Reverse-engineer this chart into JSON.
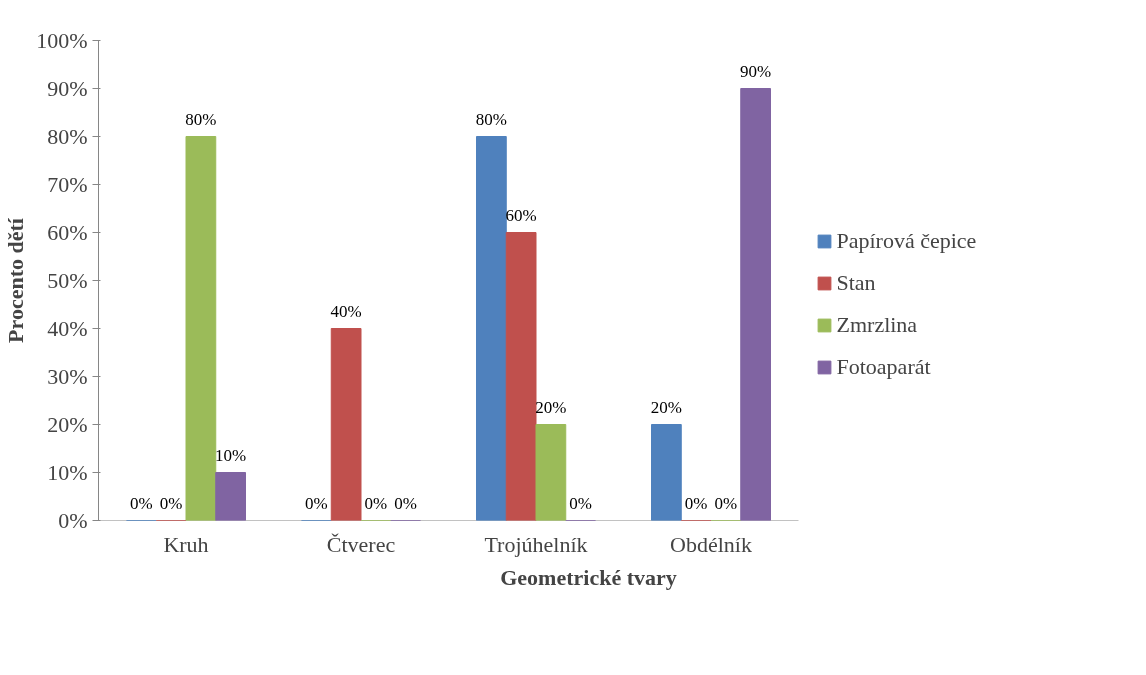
{
  "chart_data": {
    "type": "bar",
    "xlabel": "Geometrické tvary",
    "ylabel": "Procento dětí",
    "categories": [
      "Kruh",
      "Čtverec",
      "Trojúhelník",
      "Obdélník"
    ],
    "series": [
      {
        "name": "Papírová čepice",
        "color": "#4f81bd",
        "values": [
          0,
          0,
          80,
          20
        ],
        "value_labels": [
          "0%",
          "0%",
          "80%",
          "20%"
        ]
      },
      {
        "name": "Stan",
        "color": "#c0504d",
        "values": [
          0,
          40,
          60,
          0
        ],
        "value_labels": [
          "0%",
          "40%",
          "60%",
          "0%"
        ]
      },
      {
        "name": "Zmrzlina",
        "color": "#9bbb59",
        "values": [
          80,
          0,
          20,
          0
        ],
        "value_labels": [
          "80%",
          "0%",
          "20%",
          "0%"
        ]
      },
      {
        "name": "Fotoaparát",
        "color": "#8064a2",
        "values": [
          10,
          0,
          0,
          90
        ],
        "value_labels": [
          "10%",
          "0%",
          "0%",
          "90%"
        ]
      }
    ],
    "ylim": [
      0,
      100
    ],
    "yticks": [
      {
        "value": 0,
        "label": "0%"
      },
      {
        "value": 10,
        "label": "10%"
      },
      {
        "value": 20,
        "label": "20%"
      },
      {
        "value": 30,
        "label": "30%"
      },
      {
        "value": 40,
        "label": "40%"
      },
      {
        "value": 50,
        "label": "50%"
      },
      {
        "value": 60,
        "label": "60%"
      },
      {
        "value": 70,
        "label": "70%"
      },
      {
        "value": 80,
        "label": "80%"
      },
      {
        "value": 90,
        "label": "90%"
      },
      {
        "value": 100,
        "label": "100%"
      }
    ],
    "grid": false,
    "legend": "right"
  }
}
